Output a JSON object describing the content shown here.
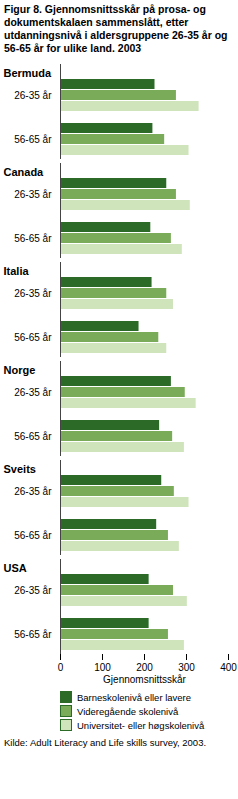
{
  "chart_data": {
    "type": "bar",
    "orientation": "horizontal",
    "title": "Figur 8. Gjennomsnittsskår på prosa- og dokumentskalaen sammenslått, etter utdanningsnivå i aldersgruppene 26-35 år og 56-65 år for ulike land. 2003",
    "facets": [
      "Bermuda",
      "Canada",
      "Italia",
      "Norge",
      "Sveits",
      "USA"
    ],
    "categories": [
      "26-35 år",
      "56-65 år"
    ],
    "series": [
      {
        "name": "Barneskolenivå eller lavere",
        "color": "#2b6a27",
        "values": [
          [
            225,
            220
          ],
          [
            253,
            215
          ],
          [
            218,
            187
          ],
          [
            264,
            236
          ],
          [
            241,
            229
          ],
          [
            211,
            211
          ]
        ]
      },
      {
        "name": "Videregående skolenivå",
        "color": "#7aab58",
        "values": [
          [
            276,
            248
          ],
          [
            276,
            264
          ],
          [
            253,
            234
          ],
          [
            297,
            267
          ],
          [
            271,
            257
          ],
          [
            269,
            257
          ]
        ]
      },
      {
        "name": "Universitet- eller høgskolenivå",
        "color": "#cfe4bb",
        "values": [
          [
            330,
            306
          ],
          [
            309,
            290
          ],
          [
            269,
            253
          ],
          [
            323,
            295
          ],
          [
            306,
            283
          ],
          [
            302,
            295
          ]
        ]
      }
    ],
    "xlabel": "Gjennomsnittsskår",
    "xlim": [
      0,
      400
    ],
    "xticks": [
      0,
      100,
      200,
      300,
      400
    ],
    "legend": "bottom",
    "source": "Kilde: Adult Literacy and Life skills survey, 2003."
  }
}
